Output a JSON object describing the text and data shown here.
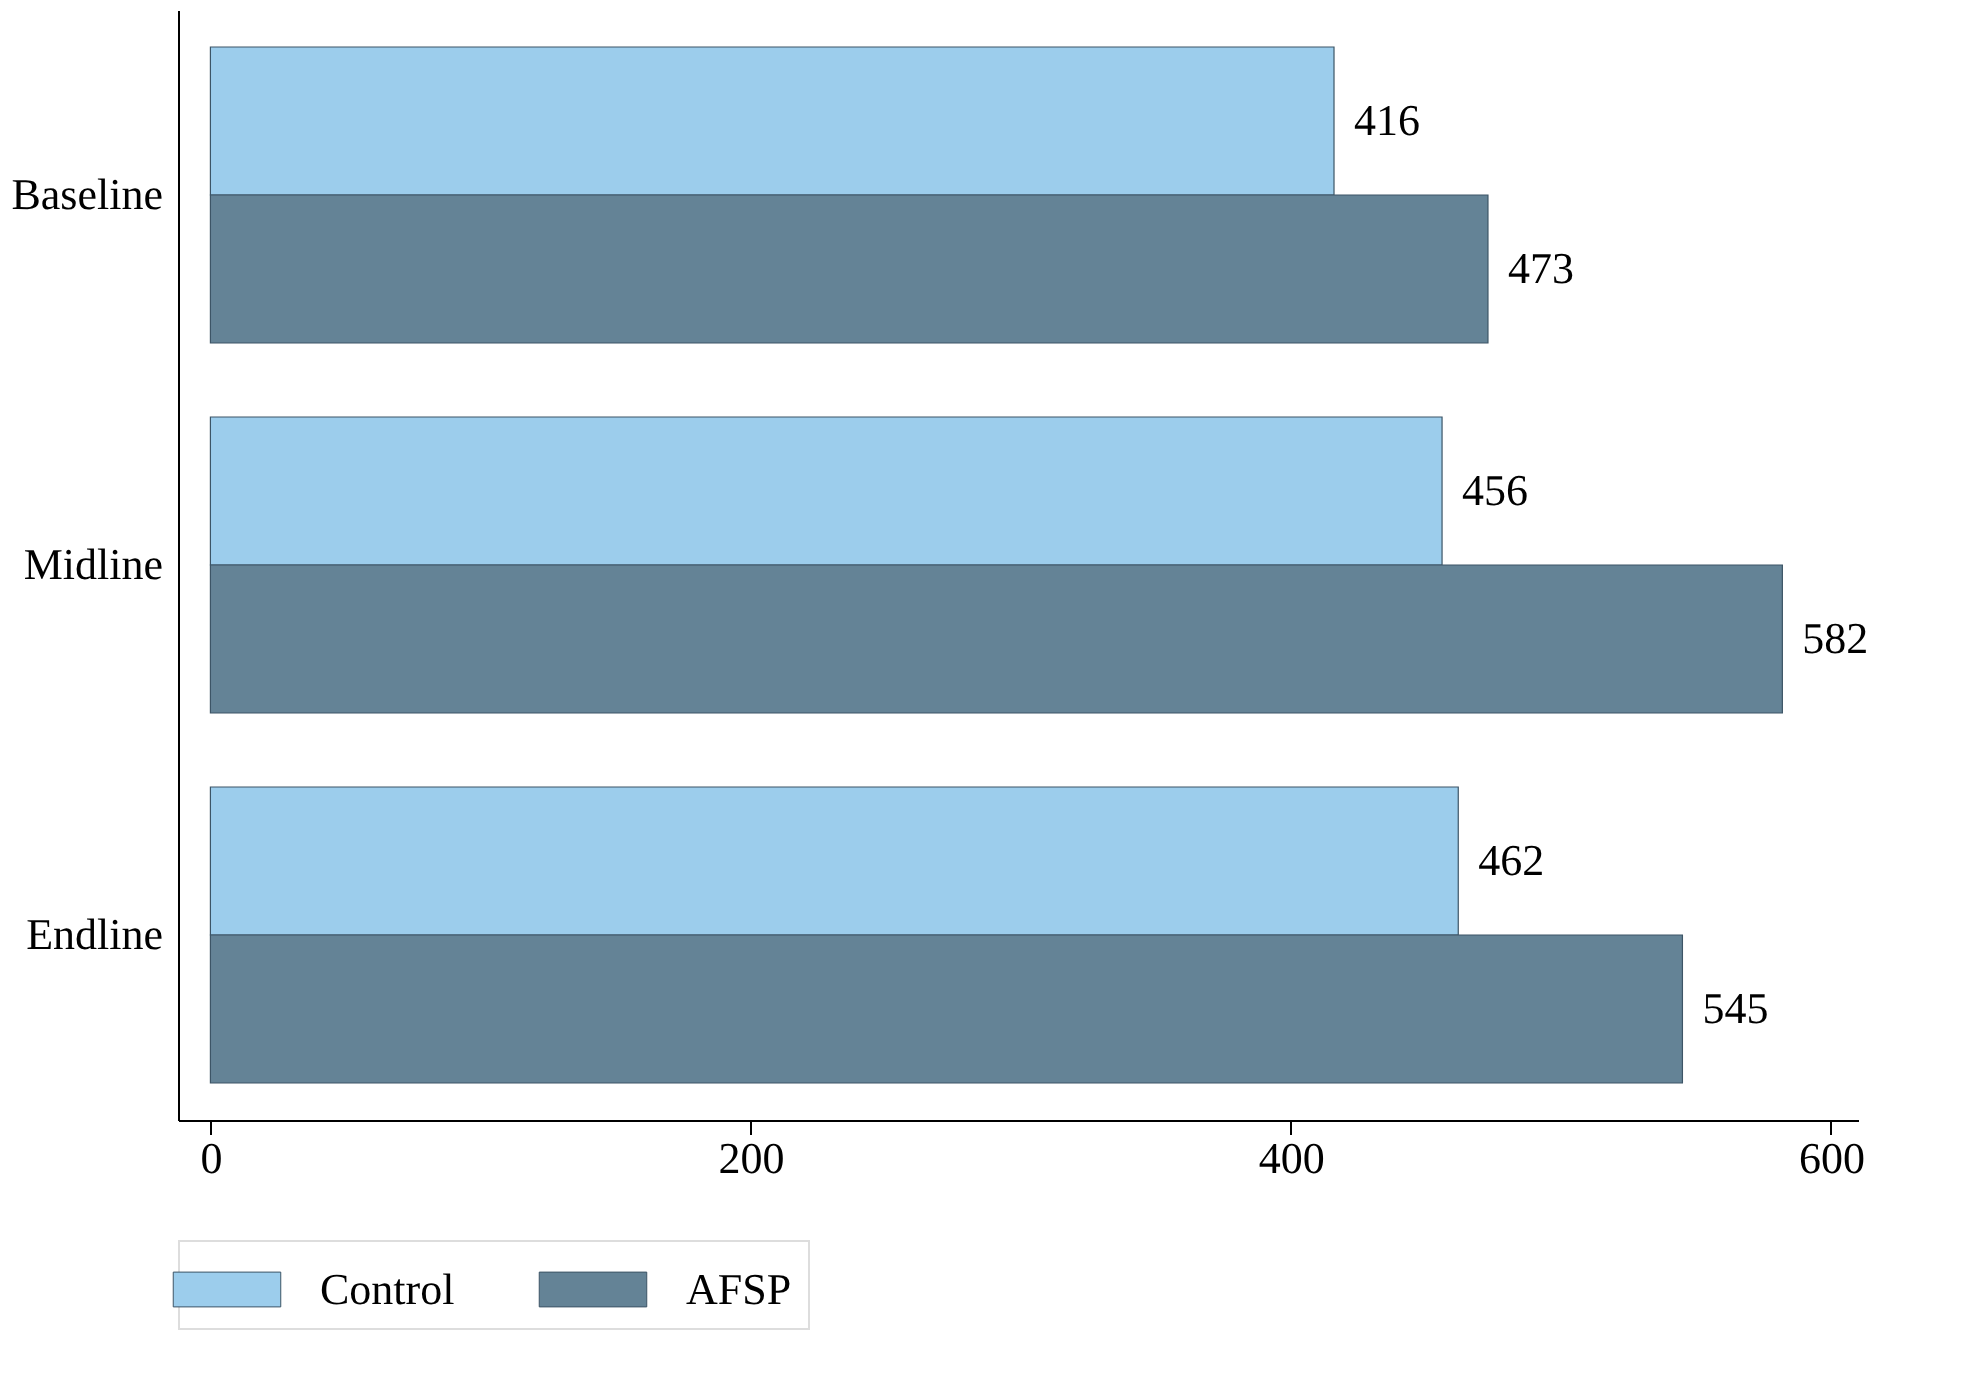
{
  "chart_data": {
    "type": "bar",
    "orientation": "horizontal",
    "categories": [
      "Baseline",
      "Midline",
      "Endline"
    ],
    "series": [
      {
        "name": "Control",
        "color": "#9ccdec",
        "values": [
          416,
          456,
          462
        ]
      },
      {
        "name": "AFSP",
        "color": "#648396",
        "values": [
          473,
          582,
          545
        ]
      }
    ],
    "xlim": [
      -12,
      610
    ],
    "xticks": [
      0,
      200,
      400,
      600
    ],
    "data_labels": true,
    "legend": "bottom",
    "grid": false
  }
}
